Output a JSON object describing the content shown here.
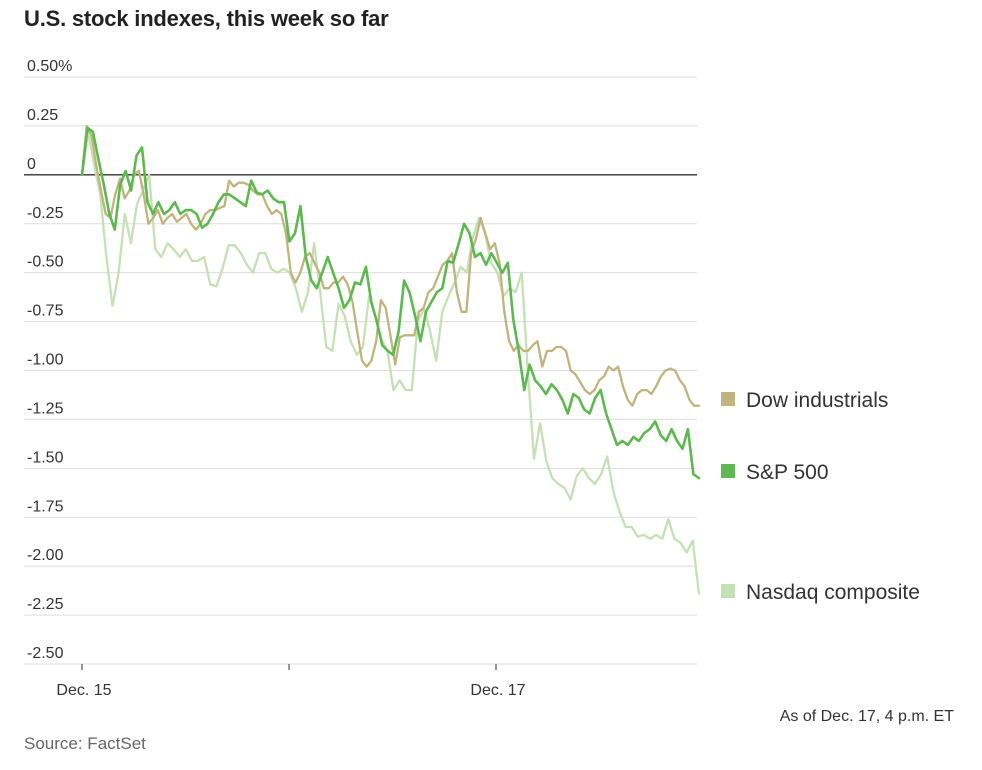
{
  "title": "U.S. stock indexes, this week so far",
  "as_of": "As of Dec. 17, 4 p.m. ET",
  "source": "Source: FactSet",
  "colors": {
    "dow": "#bfb47e",
    "sp500": "#5db84f",
    "nasdaq": "#c5e0b4",
    "grid": "#dddddd",
    "zero": "#333333"
  },
  "chart_data": {
    "type": "line",
    "title": "U.S. stock indexes, this week so far",
    "xlabel": "",
    "ylabel": "",
    "ylim": [
      -2.5,
      0.5
    ],
    "y_ticks": [
      0.5,
      0.25,
      0,
      -0.25,
      -0.5,
      -0.75,
      -1.0,
      -1.25,
      -1.5,
      -1.75,
      -2.0,
      -2.25,
      -2.5
    ],
    "y_tick_labels": [
      "0.50%",
      "0.25",
      "0",
      "-0.25",
      "-0.50",
      "-0.75",
      "-1.00",
      "-1.25",
      "-1.50",
      "-1.75",
      "-2.00",
      "-2.25",
      "-2.50"
    ],
    "x_range": [
      0,
      3
    ],
    "x_label_ticks": [
      {
        "x": 0,
        "label": "Dec. 15"
      },
      {
        "x": 1,
        "label": ""
      },
      {
        "x": 2,
        "label": "Dec. 17"
      }
    ],
    "x_end": 2.98,
    "grid": true,
    "legend_placement": "right",
    "series": [
      {
        "key": "dow",
        "name": "Dow industrials",
        "values": [
          0.0,
          0.25,
          0.2,
          0.05,
          -0.08,
          -0.2,
          -0.22,
          -0.1,
          -0.02,
          -0.12,
          -0.08,
          0.0,
          0.02,
          -0.1,
          -0.25,
          -0.22,
          -0.18,
          -0.25,
          -0.22,
          -0.2,
          -0.24,
          -0.22,
          -0.2,
          -0.25,
          -0.28,
          -0.25,
          -0.2,
          -0.18,
          -0.18,
          -0.17,
          -0.16,
          -0.03,
          -0.06,
          -0.04,
          -0.04,
          -0.05,
          -0.08,
          -0.1,
          -0.1,
          -0.16,
          -0.2,
          -0.18,
          -0.2,
          -0.3,
          -0.5,
          -0.55,
          -0.5,
          -0.42,
          -0.4,
          -0.45,
          -0.5,
          -0.58,
          -0.58,
          -0.55,
          -0.55,
          -0.52,
          -0.56,
          -0.65,
          -0.8,
          -0.95,
          -0.98,
          -0.95,
          -0.85,
          -0.64,
          -0.68,
          -0.82,
          -0.97,
          -0.83,
          -0.82,
          -0.82,
          -0.82,
          -0.7,
          -0.68,
          -0.6,
          -0.58,
          -0.52,
          -0.46,
          -0.44,
          -0.4,
          -0.6,
          -0.7,
          -0.7,
          -0.4,
          -0.33,
          -0.22,
          -0.3,
          -0.38,
          -0.35,
          -0.45,
          -0.7,
          -0.85,
          -0.9,
          -0.87,
          -0.9,
          -0.9,
          -0.87,
          -0.85,
          -0.98,
          -0.9,
          -0.9,
          -0.88,
          -0.88,
          -0.9,
          -1.0,
          -1.02,
          -1.06,
          -1.1,
          -1.12,
          -1.1,
          -1.05,
          -1.03,
          -0.98,
          -1.0,
          -0.98,
          -1.08,
          -1.15,
          -1.18,
          -1.12,
          -1.1,
          -1.1,
          -1.12,
          -1.08,
          -1.03,
          -1.0,
          -0.99,
          -1.0,
          -1.05,
          -1.08,
          -1.15,
          -1.18,
          -1.18
        ]
      },
      {
        "key": "sp500",
        "name": "S&P 500",
        "values": [
          0.0,
          0.24,
          0.22,
          0.08,
          -0.05,
          -0.2,
          -0.28,
          -0.05,
          0.02,
          -0.08,
          0.1,
          0.14,
          -0.14,
          -0.2,
          -0.14,
          -0.2,
          -0.18,
          -0.14,
          -0.2,
          -0.18,
          -0.18,
          -0.2,
          -0.27,
          -0.25,
          -0.2,
          -0.14,
          -0.1,
          -0.1,
          -0.12,
          -0.14,
          -0.16,
          -0.03,
          -0.09,
          -0.1,
          -0.08,
          -0.12,
          -0.14,
          -0.14,
          -0.34,
          -0.3,
          -0.16,
          -0.42,
          -0.54,
          -0.58,
          -0.5,
          -0.42,
          -0.5,
          -0.58,
          -0.68,
          -0.64,
          -0.55,
          -0.56,
          -0.47,
          -0.65,
          -0.75,
          -0.87,
          -0.9,
          -0.92,
          -0.8,
          -0.54,
          -0.6,
          -0.72,
          -0.85,
          -0.7,
          -0.65,
          -0.6,
          -0.58,
          -0.44,
          -0.45,
          -0.35,
          -0.25,
          -0.3,
          -0.42,
          -0.4,
          -0.46,
          -0.4,
          -0.45,
          -0.5,
          -0.45,
          -0.74,
          -0.9,
          -1.1,
          -0.97,
          -1.05,
          -1.08,
          -1.12,
          -1.07,
          -1.1,
          -1.15,
          -1.22,
          -1.12,
          -1.14,
          -1.2,
          -1.22,
          -1.14,
          -1.1,
          -1.22,
          -1.3,
          -1.38,
          -1.36,
          -1.38,
          -1.34,
          -1.36,
          -1.32,
          -1.3,
          -1.26,
          -1.33,
          -1.36,
          -1.3,
          -1.36,
          -1.4,
          -1.3,
          -1.53,
          -1.55
        ]
      },
      {
        "key": "nasdaq",
        "name": "Nasdaq composite",
        "values": [
          0.0,
          0.22,
          0.05,
          -0.1,
          -0.42,
          -0.67,
          -0.5,
          -0.2,
          -0.35,
          -0.15,
          -0.08,
          0.0,
          -0.38,
          -0.42,
          -0.35,
          -0.38,
          -0.42,
          -0.38,
          -0.44,
          -0.44,
          -0.42,
          -0.56,
          -0.57,
          -0.48,
          -0.36,
          -0.36,
          -0.4,
          -0.46,
          -0.5,
          -0.4,
          -0.4,
          -0.48,
          -0.5,
          -0.48,
          -0.5,
          -0.58,
          -0.7,
          -0.6,
          -0.35,
          -0.6,
          -0.88,
          -0.9,
          -0.66,
          -0.72,
          -0.85,
          -0.92,
          -0.88,
          -0.62,
          -0.72,
          -0.84,
          -0.9,
          -1.1,
          -1.05,
          -1.1,
          -1.1,
          -0.75,
          -0.68,
          -0.8,
          -0.95,
          -0.7,
          -0.62,
          -0.55,
          -0.47,
          -0.5,
          -0.32,
          -0.22,
          -0.3,
          -0.45,
          -0.5,
          -0.62,
          -0.58,
          -0.6,
          -0.5,
          -1.0,
          -1.45,
          -1.27,
          -1.46,
          -1.55,
          -1.58,
          -1.6,
          -1.66,
          -1.54,
          -1.5,
          -1.55,
          -1.58,
          -1.53,
          -1.44,
          -1.62,
          -1.72,
          -1.8,
          -1.8,
          -1.85,
          -1.84,
          -1.86,
          -1.84,
          -1.86,
          -1.76,
          -1.86,
          -1.88,
          -1.93,
          -1.87,
          -2.14
        ]
      }
    ]
  },
  "legend": [
    {
      "key": "dow",
      "label": "Dow industrials"
    },
    {
      "key": "sp500",
      "label": "S&P 500"
    },
    {
      "key": "nasdaq",
      "label": "Nasdaq composite"
    }
  ]
}
